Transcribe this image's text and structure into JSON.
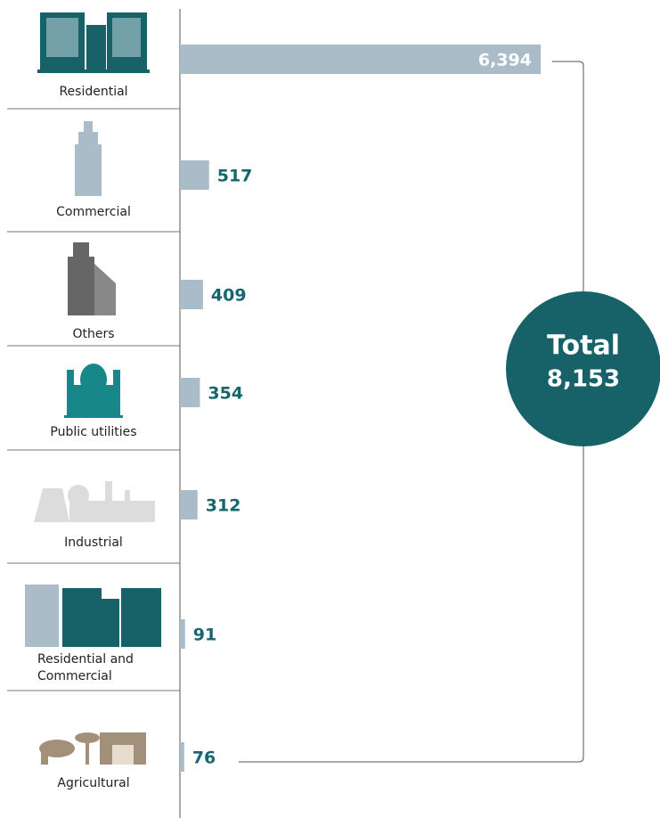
{
  "chart_data": {
    "type": "bar",
    "orientation": "horizontal",
    "categories": [
      "Residential",
      "Commercial",
      "Others",
      "Public utilities",
      "Industrial",
      "Residential and Commercial",
      "Agricultural"
    ],
    "values": [
      6394,
      517,
      409,
      354,
      312,
      91,
      76
    ],
    "value_labels": [
      "6,394",
      "517",
      "409",
      "354",
      "312",
      "91",
      "76"
    ],
    "color": "#a9bcc8",
    "label_color": "#17666b",
    "total_label": "Total",
    "total_value_label": "8,153",
    "total_color": "#176168"
  }
}
